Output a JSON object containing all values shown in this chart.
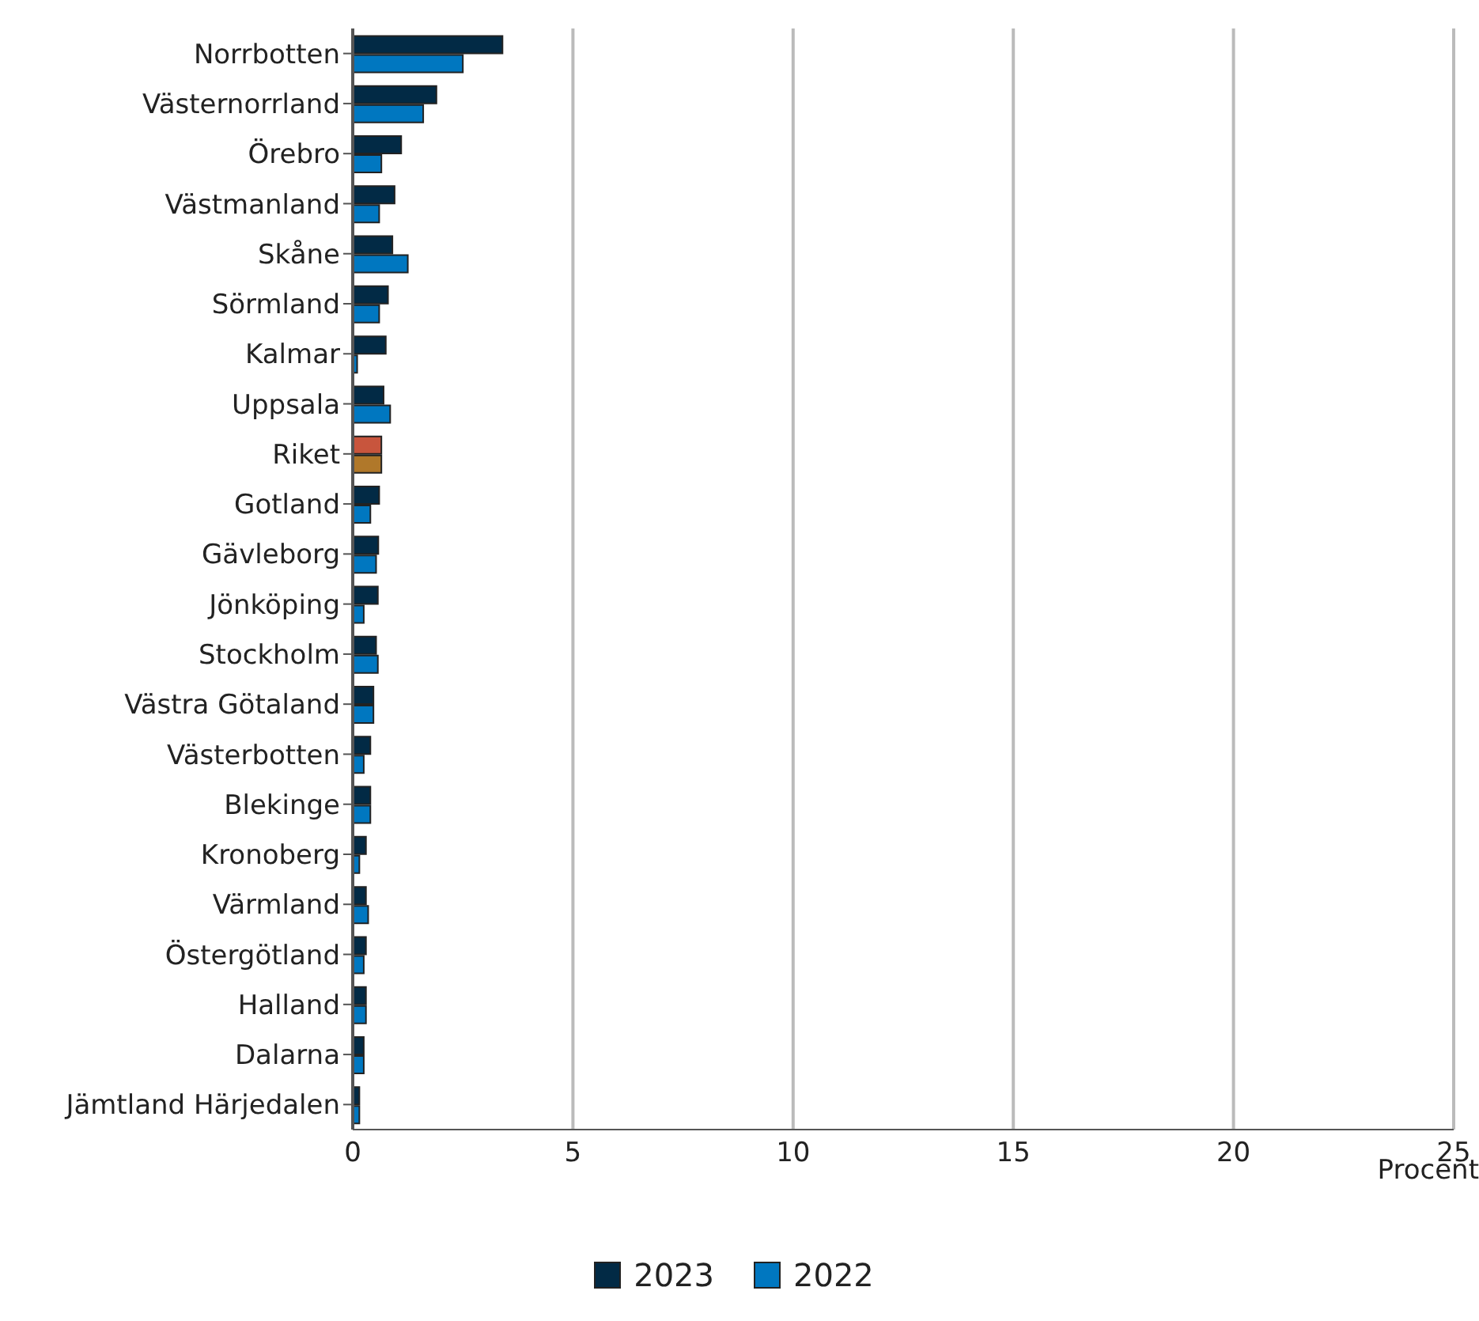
{
  "chart_data": {
    "type": "bar",
    "orientation": "horizontal",
    "xlabel": "Procent",
    "categories": [
      "Norrbotten",
      "Västernorrland",
      "Örebro",
      "Västmanland",
      "Skåne",
      "Sörmland",
      "Kalmar",
      "Uppsala",
      "Riket",
      "Gotland",
      "Gävleborg",
      "Jönköping",
      "Stockholm",
      "Västra Götaland",
      "Västerbotten",
      "Blekinge",
      "Kronoberg",
      "Värmland",
      "Östergötland",
      "Halland",
      "Dalarna",
      "Jämtland Härjedalen"
    ],
    "series": [
      {
        "name": "2023",
        "color": "#022a45",
        "colors": [
          "#022a45",
          "#022a45",
          "#022a45",
          "#022a45",
          "#022a45",
          "#022a45",
          "#022a45",
          "#022a45",
          "#c8553d",
          "#022a45",
          "#022a45",
          "#022a45",
          "#022a45",
          "#022a45",
          "#022a45",
          "#022a45",
          "#022a45",
          "#022a45",
          "#022a45",
          "#022a45",
          "#022a45",
          "#022a45"
        ],
        "values": [
          3.4,
          1.9,
          1.1,
          0.95,
          0.9,
          0.8,
          0.75,
          0.7,
          0.65,
          0.6,
          0.58,
          0.57,
          0.53,
          0.47,
          0.4,
          0.4,
          0.3,
          0.3,
          0.3,
          0.3,
          0.25,
          0.15
        ]
      },
      {
        "name": "2022",
        "color": "#0077c0",
        "colors": [
          "#0077c0",
          "#0077c0",
          "#0077c0",
          "#0077c0",
          "#0077c0",
          "#0077c0",
          "#0077c0",
          "#0077c0",
          "#b0782a",
          "#0077c0",
          "#0077c0",
          "#0077c0",
          "#0077c0",
          "#0077c0",
          "#0077c0",
          "#0077c0",
          "#0077c0",
          "#0077c0",
          "#0077c0",
          "#0077c0",
          "#0077c0",
          "#0077c0"
        ],
        "values": [
          2.5,
          1.6,
          0.65,
          0.6,
          1.25,
          0.6,
          0.1,
          0.85,
          0.65,
          0.4,
          0.53,
          0.25,
          0.57,
          0.47,
          0.25,
          0.4,
          0.15,
          0.35,
          0.25,
          0.3,
          0.25,
          0.15
        ]
      }
    ],
    "xlim": [
      0,
      25
    ],
    "xticks": [
      0,
      5,
      10,
      15,
      20,
      25
    ],
    "grid": "x",
    "legend": "bottom"
  }
}
